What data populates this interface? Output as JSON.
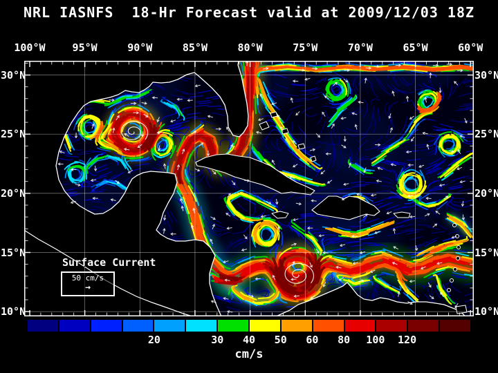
{
  "title": "NRL IASNFS  18-Hr Forecast valid at 2009/12/03 18Z",
  "axes": {
    "lon_ticks": [
      "100°W",
      "95°W",
      "90°W",
      "85°W",
      "80°W",
      "75°W",
      "70°W",
      "65°W",
      "60°W"
    ],
    "lat_ticks": [
      "30°N",
      "25°N",
      "20°N",
      "15°N",
      "10°N"
    ]
  },
  "map": {
    "legend_title": "Surface Current",
    "scale_text": "50 cm/s"
  },
  "icons": {
    "right_arrow": "→"
  },
  "colorbar": {
    "unit": "cm/s",
    "tick_labels": [
      "20",
      "30",
      "40",
      "50",
      "60",
      "80",
      "100",
      "120"
    ],
    "tick_cells": [
      4,
      6,
      7,
      8,
      9,
      10,
      11,
      12
    ],
    "colors": [
      "#000080",
      "#0000c0",
      "#0020ff",
      "#0060ff",
      "#00a0ff",
      "#00e0ff",
      "#00e000",
      "#ffff00",
      "#ffa000",
      "#ff5000",
      "#e60000",
      "#aa0000",
      "#7a0000",
      "#550000"
    ]
  },
  "colors": {
    "background": "#000000",
    "text": "#ffffff",
    "coastline": "#ffffff",
    "grid": "#cccccc",
    "ocean_base": "#000014"
  }
}
